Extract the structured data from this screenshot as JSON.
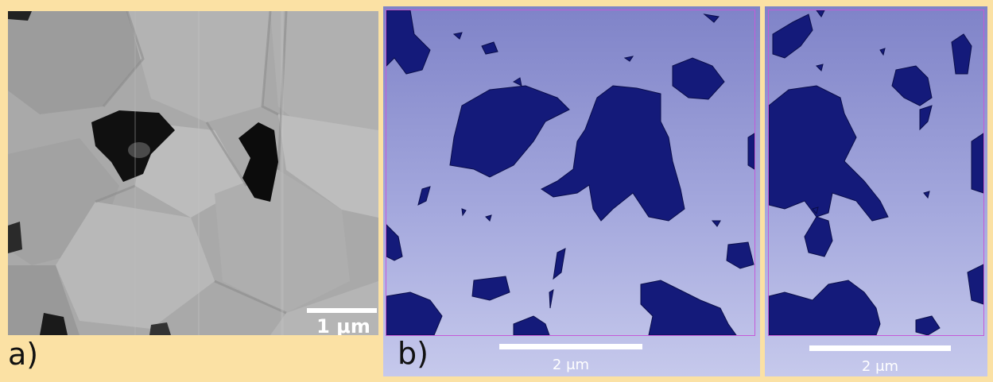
{
  "panels": {
    "a": {
      "label": "a)",
      "scale_text": "1 μm",
      "content": "grayscale electron micrograph with dark pores"
    },
    "b": {
      "label": "b)",
      "scale_text": "2 μm",
      "content": "3D reconstruction of pores (dark blue) viewed from top"
    },
    "c": {
      "scale_text": "2 μm",
      "content": "3D reconstruction of pores (dark blue), side view"
    }
  },
  "colors": {
    "background": "#fbe1a4",
    "pore_blue": "#141a7a",
    "render_bg": "#a4a8dd",
    "frame_line": "#c45ad8"
  }
}
